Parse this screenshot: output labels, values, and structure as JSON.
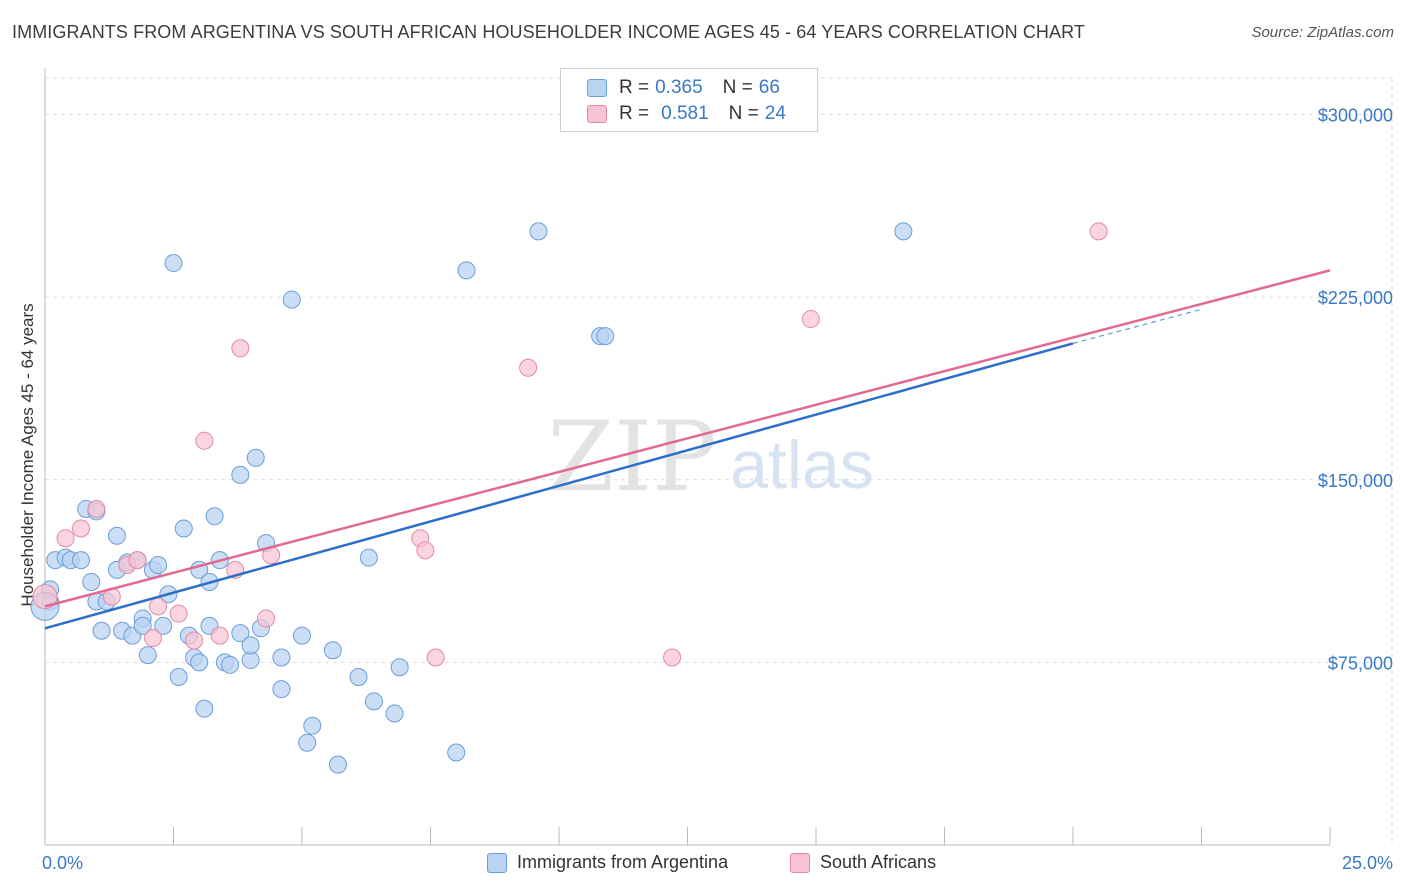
{
  "title": "IMMIGRANTS FROM ARGENTINA VS SOUTH AFRICAN HOUSEHOLDER INCOME AGES 45 - 64 YEARS CORRELATION CHART",
  "source": "Source: ZipAtlas.com",
  "watermark": {
    "zip": "ZIP",
    "atlas": "atlas"
  },
  "legend_top": [
    {
      "r_label": "R =",
      "r_value": "0.365",
      "n_label": "N =",
      "n_value": "66"
    },
    {
      "r_label": "R =",
      "r_value": "0.581",
      "n_label": "N =",
      "n_value": "24"
    }
  ],
  "legend_bottom": [
    "Immigrants from Argentina",
    "South Africans"
  ],
  "colors": {
    "blue_fill": "#b9d3f2",
    "blue_stroke": "#6b9fd8",
    "blue_line": "#2d6fc8",
    "pink_fill": "#f8c3d2",
    "pink_stroke": "#e58aa6",
    "pink_line": "#e26a92",
    "axis_text": "#3a78c9",
    "grid": "#dddddd"
  },
  "chart_data": {
    "type": "scatter",
    "title": "IMMIGRANTS FROM ARGENTINA VS SOUTH AFRICAN HOUSEHOLDER INCOME AGES 45 - 64 YEARS CORRELATION CHART",
    "xlabel": "",
    "ylabel": "Householder Income Ages 45 - 64 years",
    "xlim": [
      0,
      25
    ],
    "ylim": [
      0,
      315000
    ],
    "x_tick_labels": [
      "0.0%",
      "25.0%"
    ],
    "y_ticks": [
      75000,
      150000,
      225000,
      300000
    ],
    "y_tick_labels": [
      "$75,000",
      "$150,000",
      "$225,000",
      "$300,000"
    ],
    "grid": true,
    "legend": "top-center",
    "series": [
      {
        "name": "Immigrants from Argentina",
        "color": "blue",
        "trend": {
          "x": [
            0,
            20
          ],
          "y": [
            89000,
            206000
          ]
        },
        "trend_extension": {
          "x": [
            20,
            22.5
          ],
          "y": [
            206000,
            220000
          ]
        },
        "points": [
          [
            0.1,
            100000
          ],
          [
            0.1,
            105000
          ],
          [
            0.2,
            117000
          ],
          [
            0.4,
            118000
          ],
          [
            0.5,
            117000
          ],
          [
            0.7,
            117000
          ],
          [
            0.8,
            138000
          ],
          [
            0.9,
            108000
          ],
          [
            1.0,
            100000
          ],
          [
            1.0,
            137000
          ],
          [
            1.1,
            88000
          ],
          [
            1.2,
            100000
          ],
          [
            1.4,
            127000
          ],
          [
            1.4,
            113000
          ],
          [
            1.5,
            88000
          ],
          [
            1.6,
            116000
          ],
          [
            1.7,
            86000
          ],
          [
            1.8,
            117000
          ],
          [
            1.9,
            93000
          ],
          [
            1.9,
            90000
          ],
          [
            2.0,
            78000
          ],
          [
            2.1,
            113000
          ],
          [
            2.2,
            115000
          ],
          [
            2.4,
            103000
          ],
          [
            2.3,
            90000
          ],
          [
            2.5,
            239000
          ],
          [
            2.6,
            69000
          ],
          [
            2.7,
            130000
          ],
          [
            2.8,
            86000
          ],
          [
            2.9,
            77000
          ],
          [
            3.0,
            113000
          ],
          [
            3.0,
            75000
          ],
          [
            3.1,
            56000
          ],
          [
            3.2,
            108000
          ],
          [
            3.2,
            90000
          ],
          [
            3.3,
            135000
          ],
          [
            3.4,
            117000
          ],
          [
            3.5,
            75000
          ],
          [
            3.6,
            74000
          ],
          [
            3.8,
            87000
          ],
          [
            3.8,
            152000
          ],
          [
            4.0,
            76000
          ],
          [
            4.0,
            82000
          ],
          [
            4.1,
            159000
          ],
          [
            4.2,
            89000
          ],
          [
            4.3,
            124000
          ],
          [
            4.6,
            77000
          ],
          [
            4.6,
            64000
          ],
          [
            4.8,
            224000
          ],
          [
            5.0,
            86000
          ],
          [
            5.1,
            42000
          ],
          [
            5.2,
            49000
          ],
          [
            5.6,
            80000
          ],
          [
            5.7,
            33000
          ],
          [
            6.1,
            69000
          ],
          [
            6.3,
            118000
          ],
          [
            6.4,
            59000
          ],
          [
            6.8,
            54000
          ],
          [
            6.9,
            73000
          ],
          [
            8.0,
            38000
          ],
          [
            8.2,
            236000
          ],
          [
            9.6,
            252000
          ],
          [
            10.8,
            209000
          ],
          [
            10.9,
            209000
          ],
          [
            16.7,
            252000
          ],
          [
            0.0,
            98000
          ]
        ]
      },
      {
        "name": "South Africans",
        "color": "pink",
        "trend": {
          "x": [
            0,
            25
          ],
          "y": [
            98000,
            236000
          ]
        },
        "points": [
          [
            0.0,
            102000
          ],
          [
            0.4,
            126000
          ],
          [
            0.7,
            130000
          ],
          [
            1.0,
            138000
          ],
          [
            1.3,
            102000
          ],
          [
            1.6,
            115000
          ],
          [
            1.8,
            117000
          ],
          [
            2.1,
            85000
          ],
          [
            2.2,
            98000
          ],
          [
            2.6,
            95000
          ],
          [
            2.9,
            84000
          ],
          [
            3.1,
            166000
          ],
          [
            3.4,
            86000
          ],
          [
            3.7,
            113000
          ],
          [
            3.8,
            204000
          ],
          [
            4.4,
            119000
          ],
          [
            4.3,
            93000
          ],
          [
            7.3,
            126000
          ],
          [
            7.4,
            121000
          ],
          [
            7.6,
            77000
          ],
          [
            9.4,
            196000
          ],
          [
            12.2,
            77000
          ],
          [
            14.9,
            216000
          ],
          [
            20.5,
            252000
          ]
        ]
      }
    ]
  }
}
